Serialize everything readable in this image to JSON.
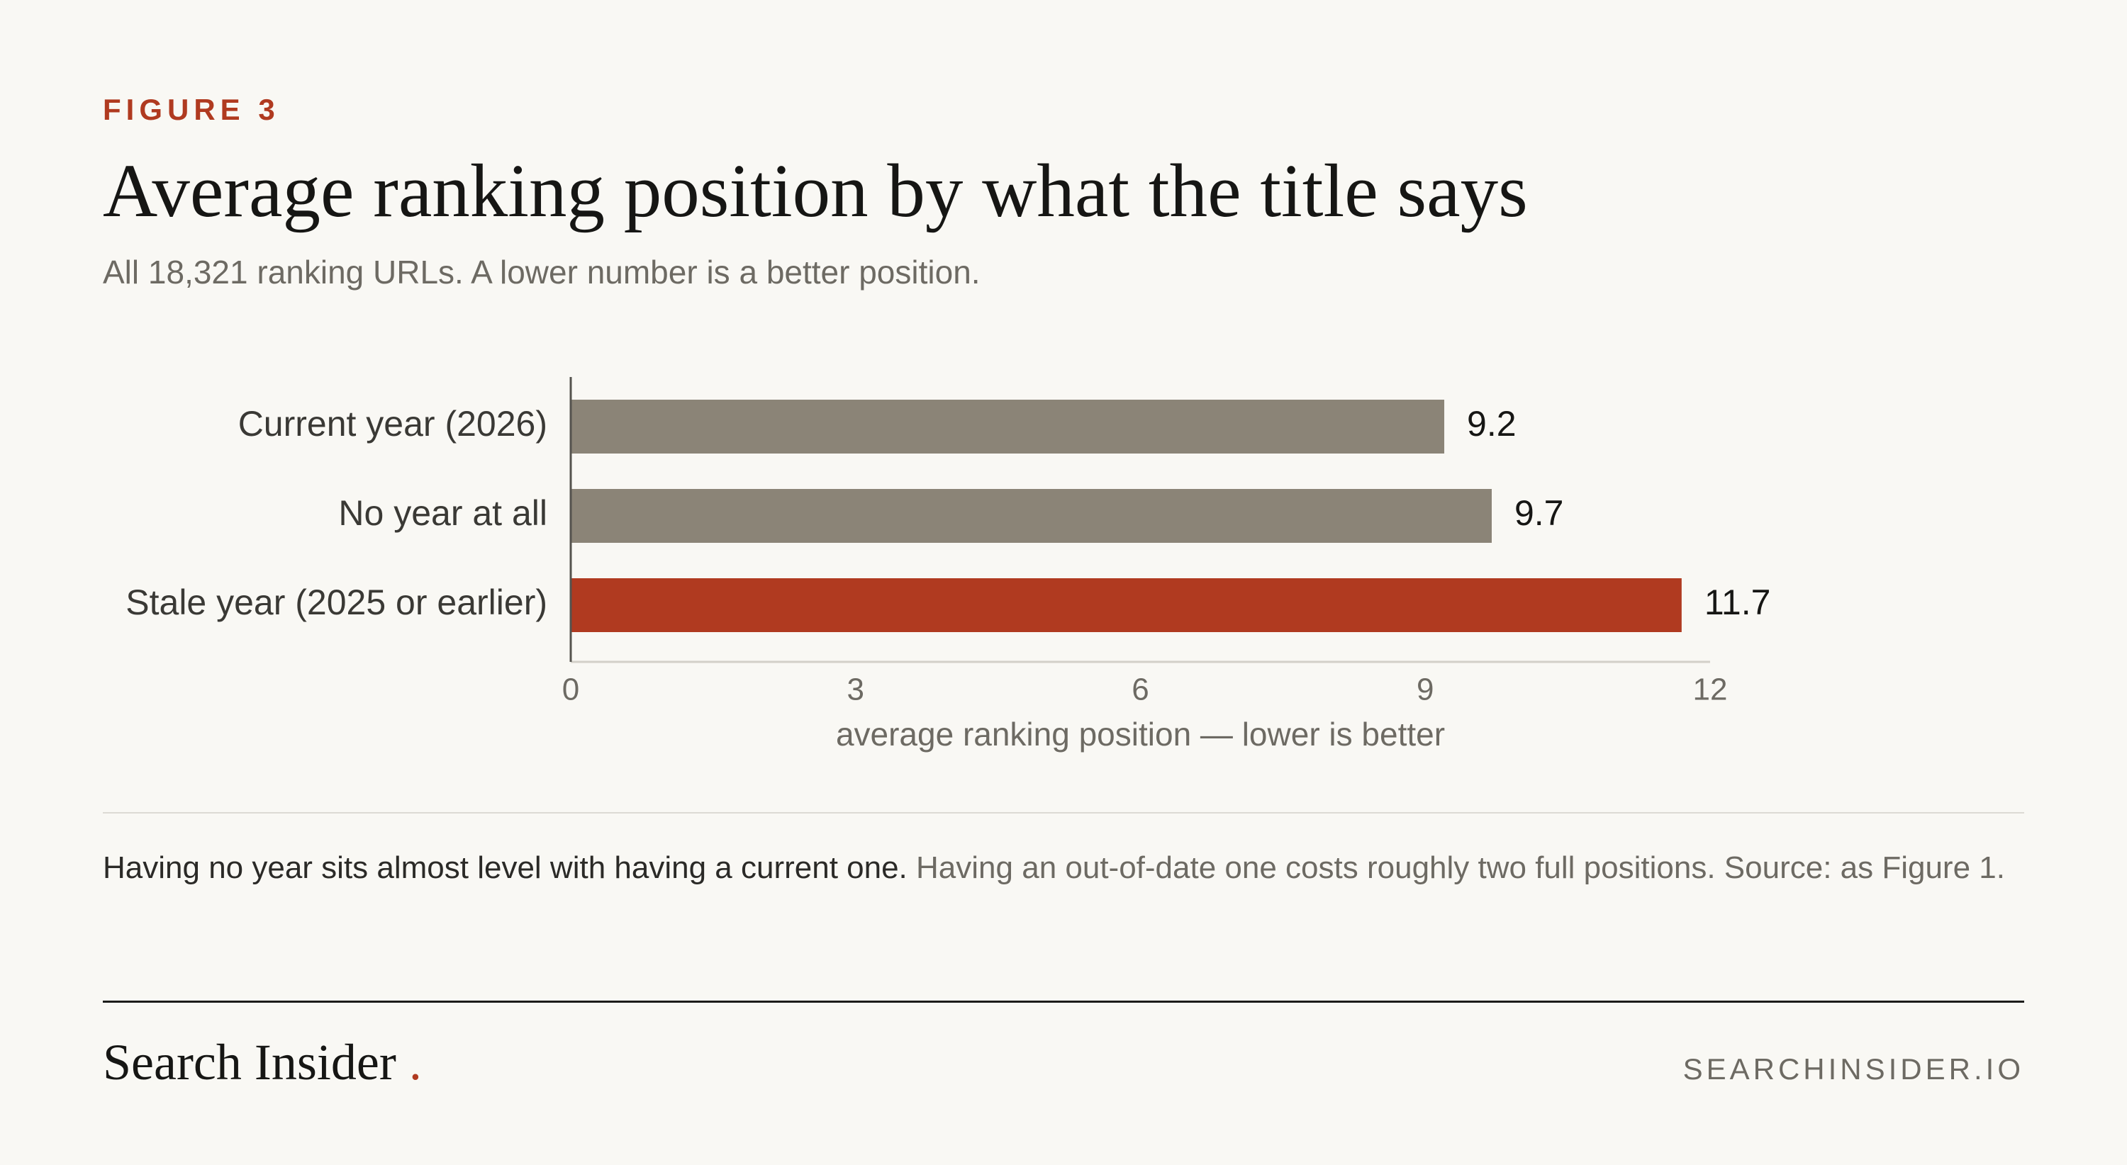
{
  "figure_label": "FIGURE 3",
  "title": "Average ranking position by what the title says",
  "subtitle": "All 18,321 ranking URLs. A lower number is a better position.",
  "note": {
    "lead": "Having no year sits almost level with having a current one.",
    "rest": "Having an out-of-date one costs roughly two full positions. Source: as Figure 1."
  },
  "footer": {
    "brand": "Search Insider",
    "brand_dot": ".",
    "site": "SEARCHINSIDER.IO"
  },
  "colors": {
    "neutral_bar": "#8b8477",
    "highlight_bar": "#b03a20",
    "background": "#f9f8f4"
  },
  "chart_data": {
    "type": "bar",
    "orientation": "horizontal",
    "categories": [
      "Current year (2026)",
      "No year at all",
      "Stale year (2025 or earlier)"
    ],
    "values": [
      9.2,
      9.7,
      11.7
    ],
    "value_labels": [
      "9.2",
      "9.7",
      "11.7"
    ],
    "highlight": [
      false,
      false,
      true
    ],
    "xlabel": "average ranking position — lower is better",
    "ylabel": "",
    "xlim": [
      0,
      12
    ],
    "xticks": [
      0,
      3,
      6,
      9,
      12
    ],
    "grid": false,
    "legend": "none"
  }
}
